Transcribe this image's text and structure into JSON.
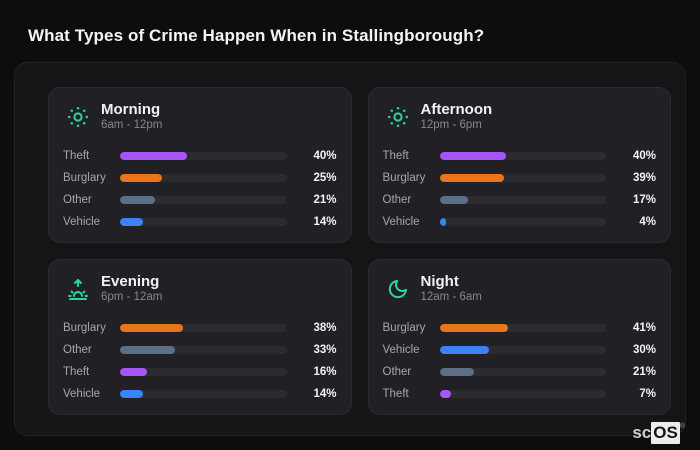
{
  "page": {
    "title": "What Types of Crime Happen When in Stallingborough?"
  },
  "watermark": {
    "prefix": "sc",
    "brand": "OS",
    "registered": "®"
  },
  "colors": {
    "theft": "#a855f7",
    "burglary": "#e8751a",
    "other": "#5d6e87",
    "vehicle": "#3b82f6",
    "icon_accent": "#2fd3a2",
    "page_bg": "#0d0d10",
    "panel_bg": "#151518",
    "card_bg": "#202025",
    "track_bg": "#2b2b30"
  },
  "cards": [
    {
      "title": "Morning",
      "range": "6am - 12pm",
      "icon": "sun-icon",
      "rows": [
        {
          "label": "Theft",
          "value": 40,
          "display": "40%",
          "color": "#a855f7"
        },
        {
          "label": "Burglary",
          "value": 25,
          "display": "25%",
          "color": "#e8751a"
        },
        {
          "label": "Other",
          "value": 21,
          "display": "21%",
          "color": "#5d6e87"
        },
        {
          "label": "Vehicle",
          "value": 14,
          "display": "14%",
          "color": "#3b82f6"
        }
      ]
    },
    {
      "title": "Afternoon",
      "range": "12pm - 6pm",
      "icon": "sun-icon",
      "rows": [
        {
          "label": "Theft",
          "value": 40,
          "display": "40%",
          "color": "#a855f7"
        },
        {
          "label": "Burglary",
          "value": 39,
          "display": "39%",
          "color": "#e8751a"
        },
        {
          "label": "Other",
          "value": 17,
          "display": "17%",
          "color": "#5d6e87"
        },
        {
          "label": "Vehicle",
          "value": 4,
          "display": "4%",
          "color": "#3b82f6"
        }
      ]
    },
    {
      "title": "Evening",
      "range": "6pm - 12am",
      "icon": "sunrise-icon",
      "rows": [
        {
          "label": "Burglary",
          "value": 38,
          "display": "38%",
          "color": "#e8751a"
        },
        {
          "label": "Other",
          "value": 33,
          "display": "33%",
          "color": "#5d6e87"
        },
        {
          "label": "Theft",
          "value": 16,
          "display": "16%",
          "color": "#a855f7"
        },
        {
          "label": "Vehicle",
          "value": 14,
          "display": "14%",
          "color": "#3b82f6"
        }
      ]
    },
    {
      "title": "Night",
      "range": "12am - 6am",
      "icon": "moon-icon",
      "rows": [
        {
          "label": "Burglary",
          "value": 41,
          "display": "41%",
          "color": "#e8751a"
        },
        {
          "label": "Vehicle",
          "value": 30,
          "display": "30%",
          "color": "#3b82f6"
        },
        {
          "label": "Other",
          "value": 21,
          "display": "21%",
          "color": "#5d6e87"
        },
        {
          "label": "Theft",
          "value": 7,
          "display": "7%",
          "color": "#a855f7"
        }
      ]
    }
  ],
  "chart_data": [
    {
      "type": "bar",
      "orientation": "horizontal",
      "title": "Morning",
      "subtitle": "6am - 12pm",
      "categories": [
        "Theft",
        "Burglary",
        "Other",
        "Vehicle"
      ],
      "values": [
        40,
        25,
        21,
        14
      ],
      "value_labels": [
        "40%",
        "25%",
        "21%",
        "14%"
      ],
      "xlim": [
        0,
        100
      ],
      "grid": false,
      "legend": false
    },
    {
      "type": "bar",
      "orientation": "horizontal",
      "title": "Afternoon",
      "subtitle": "12pm - 6pm",
      "categories": [
        "Theft",
        "Burglary",
        "Other",
        "Vehicle"
      ],
      "values": [
        40,
        39,
        17,
        4
      ],
      "value_labels": [
        "40%",
        "39%",
        "17%",
        "4%"
      ],
      "xlim": [
        0,
        100
      ],
      "grid": false,
      "legend": false
    },
    {
      "type": "bar",
      "orientation": "horizontal",
      "title": "Evening",
      "subtitle": "6pm - 12am",
      "categories": [
        "Burglary",
        "Other",
        "Theft",
        "Vehicle"
      ],
      "values": [
        38,
        33,
        16,
        14
      ],
      "value_labels": [
        "38%",
        "33%",
        "16%",
        "14%"
      ],
      "xlim": [
        0,
        100
      ],
      "grid": false,
      "legend": false
    },
    {
      "type": "bar",
      "orientation": "horizontal",
      "title": "Night",
      "subtitle": "12am - 6am",
      "categories": [
        "Burglary",
        "Vehicle",
        "Other",
        "Theft"
      ],
      "values": [
        41,
        30,
        21,
        7
      ],
      "value_labels": [
        "41%",
        "30%",
        "21%",
        "7%"
      ],
      "xlim": [
        0,
        100
      ],
      "grid": false,
      "legend": false
    }
  ]
}
